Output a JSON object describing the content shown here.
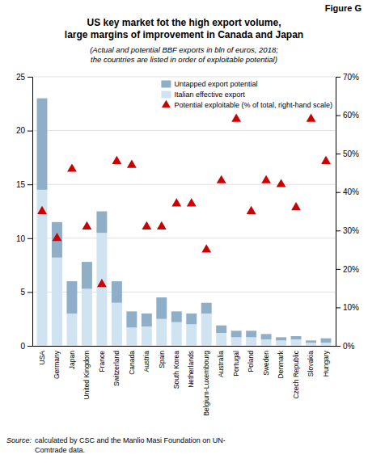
{
  "chart_data": {
    "type": "bar",
    "stacked": true,
    "title": "US key market fot the high export volume,\nlarge margins of improvement in Canada and Japan",
    "subtitle": "(Actual and potential BBF exports in bln of euros, 2018;\nthe countries are listed in order of exploitable potential)",
    "annotations": [
      "Figure G",
      "Source:",
      "calculated by CSC and the Manlio Masi Foundation on UN-\nComtrade data."
    ],
    "categories": [
      "USA",
      "Germany",
      "Japan",
      "United Kingdom",
      "France",
      "Switzerland",
      "Canada",
      "Austria",
      "Spain",
      "South Korea",
      "Netherlands",
      "Belgium-Luxembourg",
      "Australia",
      "Portugal",
      "Poland",
      "Sweden",
      "Denmark",
      "Czech Republic",
      "Slovakia",
      "Hungary"
    ],
    "series": [
      {
        "name": "Italian effective export",
        "color": "#d0e3f0",
        "values": [
          14.5,
          8.2,
          3.0,
          5.3,
          10.5,
          4.0,
          1.7,
          1.8,
          2.5,
          2.2,
          2.0,
          3.0,
          1.2,
          0.8,
          0.8,
          0.6,
          0.5,
          0.6,
          0.3,
          0.3
        ]
      },
      {
        "name": "Untapped export potential",
        "color": "#8fafc8",
        "values": [
          8.5,
          3.3,
          3.0,
          2.5,
          2.0,
          2.0,
          1.5,
          1.2,
          2.0,
          1.0,
          1.0,
          1.0,
          0.7,
          0.6,
          0.6,
          0.5,
          0.3,
          0.3,
          0.2,
          0.4
        ]
      },
      {
        "name": "Potential exploitable (% of total, right-hand scale)",
        "type": "scatter",
        "marker": "triangle",
        "color": "#cc0000",
        "axis": "y2",
        "values": [
          35,
          28,
          46,
          31,
          16,
          48,
          47,
          31,
          31,
          37,
          37,
          25,
          43,
          59,
          35,
          43,
          42,
          36,
          59,
          48
        ]
      }
    ],
    "ylim": [
      0,
      25
    ],
    "yticks": [
      0,
      5,
      10,
      15,
      20,
      25
    ],
    "y2lim": [
      0,
      70
    ],
    "y2ticks": [
      {
        "value": 0,
        "label": "0%"
      },
      {
        "value": 10,
        "label": "10%"
      },
      {
        "value": 20,
        "label": "20%"
      },
      {
        "value": 30,
        "label": "30%"
      },
      {
        "value": 40,
        "label": "40%"
      },
      {
        "value": 50,
        "label": "50%"
      },
      {
        "value": 60,
        "label": "60%"
      },
      {
        "value": 70,
        "label": "70%"
      }
    ],
    "grid": true,
    "legend": "upper-right"
  }
}
